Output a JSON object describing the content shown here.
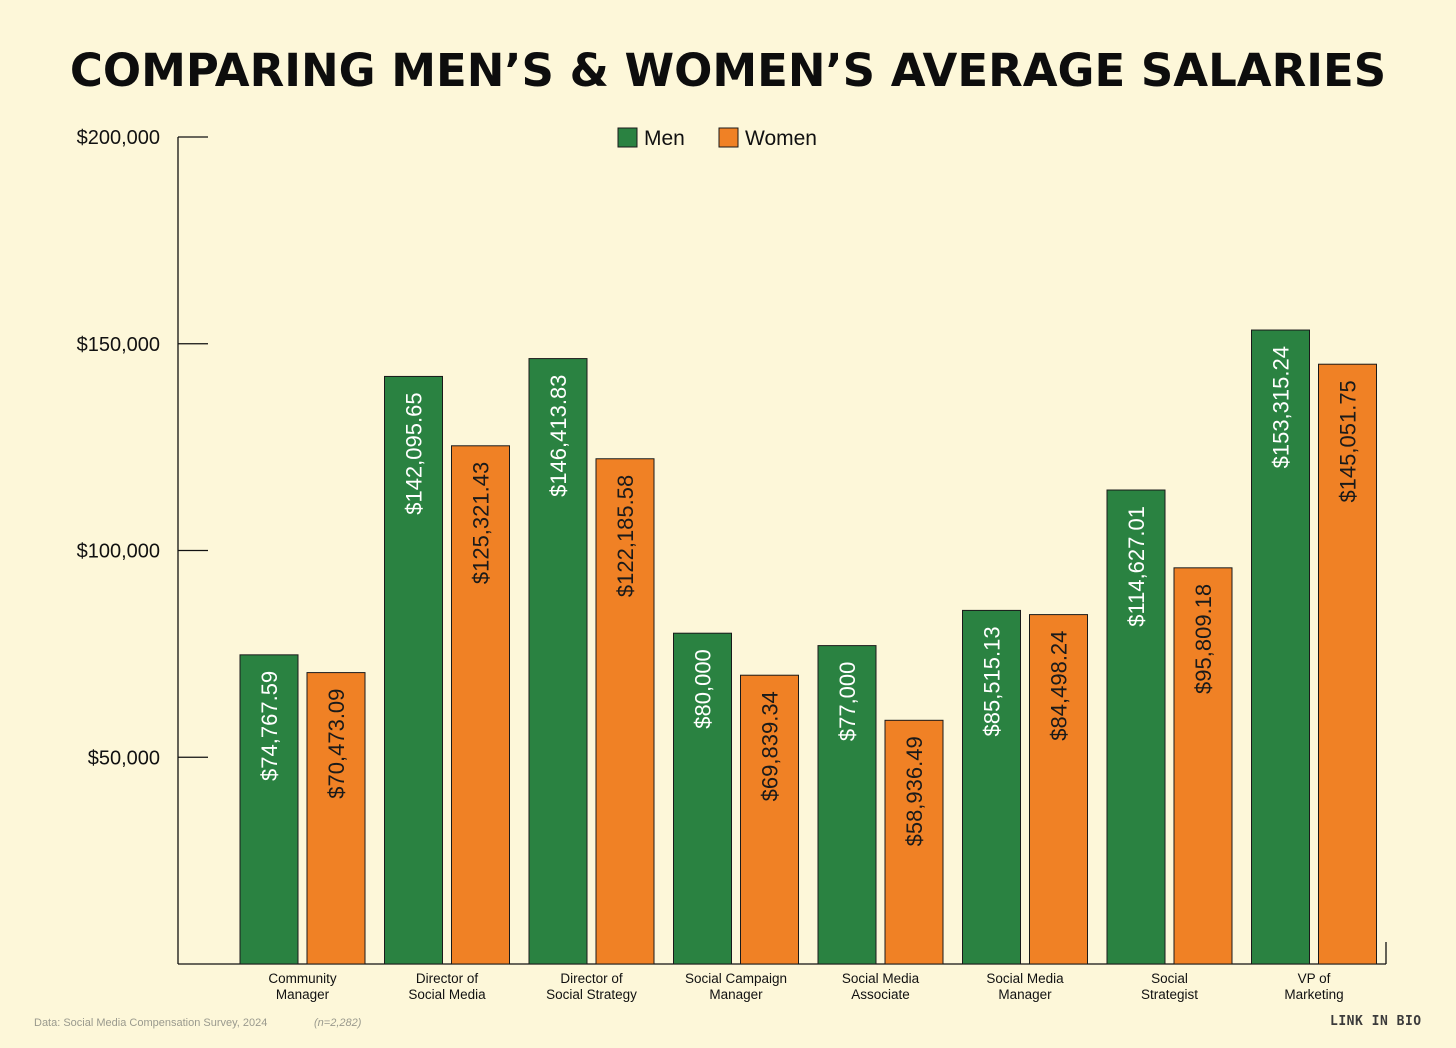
{
  "title": "COMPARING MEN’S & WOMEN’S AVERAGE SALARIES",
  "footer": {
    "source": "Data: Social Media Compensation Survey, 2024",
    "sample": "(n=2,282)",
    "brand": "LINK IN BIO"
  },
  "colors": {
    "men": "#2a8241",
    "women": "#f08125",
    "background": "#fdf7d9",
    "axis": "#111111"
  },
  "chart_data": {
    "type": "bar",
    "title": "COMPARING MEN’S & WOMEN’S AVERAGE SALARIES",
    "xlabel": "",
    "ylabel": "",
    "ylim": [
      0,
      200000
    ],
    "yticks": [
      {
        "value": 50000,
        "label": "$50,000"
      },
      {
        "value": 100000,
        "label": "$100,000"
      },
      {
        "value": 150000,
        "label": "$150,000"
      },
      {
        "value": 200000,
        "label": "$200,000"
      }
    ],
    "legend_position": "top-center",
    "grid": false,
    "categories": [
      [
        "Community",
        "Manager"
      ],
      [
        "Director of",
        "Social Media"
      ],
      [
        "Director of",
        "Social Strategy"
      ],
      [
        "Social Campaign",
        "Manager"
      ],
      [
        "Social Media",
        "Associate"
      ],
      [
        "Social Media",
        "Manager"
      ],
      [
        "Social",
        "Strategist"
      ],
      [
        "VP of",
        "Marketing"
      ]
    ],
    "series": [
      {
        "name": "Men",
        "color": "#2a8241",
        "values": [
          74767.59,
          142095.65,
          146413.83,
          80000,
          77000,
          85515.13,
          114627.01,
          153315.24
        ],
        "labels": [
          "$74,767.59",
          "$142,095.65",
          "$146,413.83",
          "$80,000",
          "$77,000",
          "$85,515.13",
          "$114,627.01",
          "$153,315.24"
        ]
      },
      {
        "name": "Women",
        "color": "#f08125",
        "values": [
          70473.09,
          125321.43,
          122185.58,
          69839.34,
          58936.49,
          84498.24,
          95809.18,
          145051.75
        ],
        "labels": [
          "$70,473.09",
          "$125,321.43",
          "$122,185.58",
          "$69,839.34",
          "$58,936.49",
          "$84,498.24",
          "$95,809.18",
          "$145,051.75"
        ]
      }
    ]
  }
}
